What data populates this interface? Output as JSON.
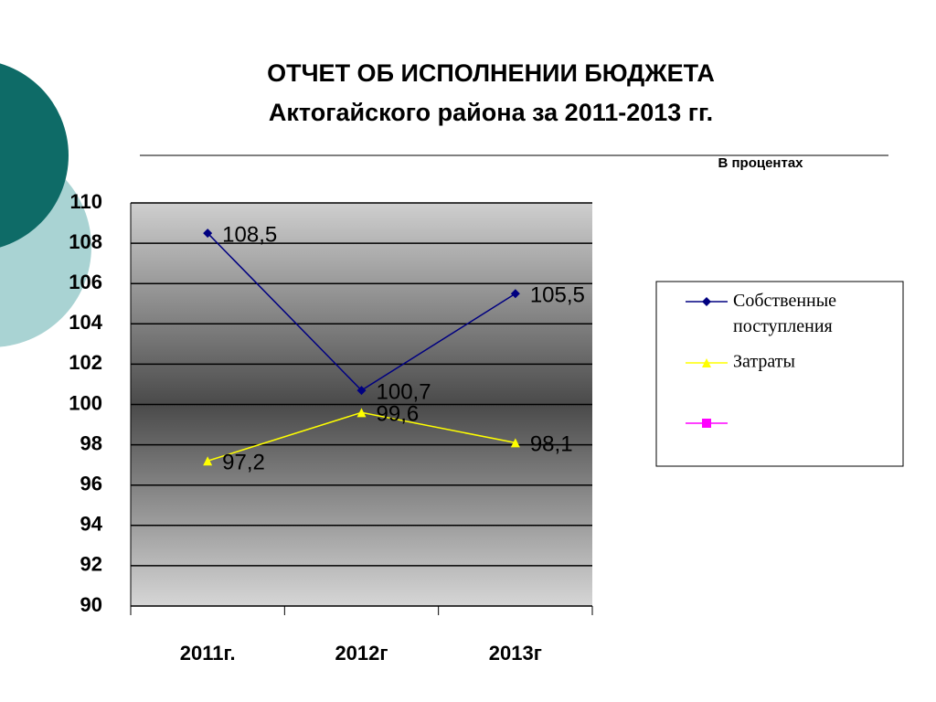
{
  "chart_data": {
    "type": "line",
    "title": "ОТЧЕТ ОБ ИСПОЛНЕНИИ БЮДЖЕТА",
    "subtitle": "Актогайского района за 2011-2013 гг.",
    "annotation": "В процентах",
    "categories": [
      "2011г.",
      "2012г",
      "2013г"
    ],
    "series": [
      {
        "name": "Собственные поступления",
        "color": "#000080",
        "marker": "diamond",
        "values": [
          108.5,
          100.7,
          105.5
        ],
        "value_labels": [
          "108,5",
          "100,7",
          "105,5"
        ]
      },
      {
        "name": "Затраты",
        "color": "#ffff00",
        "marker": "triangle",
        "values": [
          97.2,
          99.6,
          98.1
        ],
        "value_labels": [
          "97,2",
          "99,6",
          "98,1"
        ]
      },
      {
        "color": "#ff00ff",
        "marker": "square",
        "values": [
          null,
          null,
          null
        ]
      }
    ],
    "ylim": [
      90,
      110
    ],
    "yticks": [
      90,
      92,
      94,
      96,
      98,
      100,
      102,
      104,
      106,
      108,
      110
    ],
    "grid": true,
    "legend": "right"
  }
}
